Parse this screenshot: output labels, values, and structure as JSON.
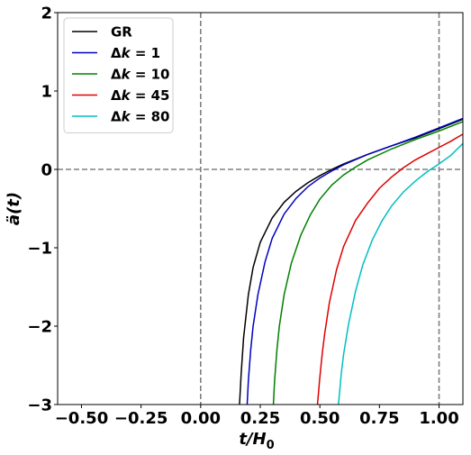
{
  "chart_data": {
    "type": "line",
    "xlabel_main": "t/H",
    "xlabel_sub": "0",
    "ylabel_main": "ä(t)",
    "xlim": [
      -0.6,
      1.1
    ],
    "ylim": [
      -3,
      2
    ],
    "xticks": [
      -0.5,
      -0.25,
      0.0,
      0.25,
      0.5,
      0.75,
      1.0
    ],
    "xtick_labels": [
      "−0.50",
      "−0.25",
      "0.00",
      "0.25",
      "0.50",
      "0.75",
      "1.00"
    ],
    "yticks": [
      -3,
      -2,
      -1,
      0,
      1,
      2
    ],
    "ytick_labels": [
      "−3",
      "−2",
      "−1",
      "0",
      "1",
      "2"
    ],
    "reference_lines": {
      "vertical": [
        0.0,
        1.0
      ],
      "horizontal": [
        0.0
      ]
    },
    "legend_position": "upper-left",
    "series": [
      {
        "name_prefix": "GR",
        "name_value": "",
        "color": "#000000",
        "x": [
          0.163,
          0.17,
          0.18,
          0.2,
          0.22,
          0.25,
          0.3,
          0.35,
          0.4,
          0.45,
          0.5,
          0.55,
          0.6,
          0.7,
          0.8,
          0.9,
          1.0,
          1.1
        ],
        "y": [
          -3.0,
          -2.6,
          -2.15,
          -1.6,
          -1.25,
          -0.93,
          -0.62,
          -0.42,
          -0.28,
          -0.17,
          -0.08,
          0.0,
          0.07,
          0.19,
          0.3,
          0.4,
          0.52,
          0.64
        ]
      },
      {
        "name_prefix": "Δk",
        "name_value": "1",
        "color": "#0000bf",
        "x": [
          0.195,
          0.2,
          0.21,
          0.22,
          0.24,
          0.27,
          0.3,
          0.35,
          0.4,
          0.45,
          0.5,
          0.55,
          0.6,
          0.7,
          0.8,
          0.9,
          1.0,
          1.1
        ],
        "y": [
          -3.0,
          -2.7,
          -2.3,
          -2.0,
          -1.6,
          -1.18,
          -0.88,
          -0.57,
          -0.37,
          -0.22,
          -0.11,
          -0.02,
          0.06,
          0.19,
          0.3,
          0.41,
          0.53,
          0.65
        ]
      },
      {
        "name_prefix": "Δk",
        "name_value": "10",
        "color": "#008000",
        "x": [
          0.305,
          0.31,
          0.32,
          0.33,
          0.35,
          0.38,
          0.42,
          0.46,
          0.5,
          0.55,
          0.6,
          0.65,
          0.7,
          0.8,
          0.9,
          1.0,
          1.1
        ],
        "y": [
          -3.0,
          -2.7,
          -2.3,
          -2.0,
          -1.6,
          -1.2,
          -0.84,
          -0.58,
          -0.38,
          -0.2,
          -0.07,
          0.03,
          0.12,
          0.26,
          0.38,
          0.49,
          0.61
        ]
      },
      {
        "name_prefix": "Δk",
        "name_value": "45",
        "color": "#e00000",
        "x": [
          0.49,
          0.5,
          0.51,
          0.52,
          0.54,
          0.57,
          0.6,
          0.65,
          0.7,
          0.75,
          0.8,
          0.85,
          0.9,
          0.95,
          1.0,
          1.05,
          1.1
        ],
        "y": [
          -3.0,
          -2.65,
          -2.35,
          -2.1,
          -1.7,
          -1.28,
          -0.98,
          -0.65,
          -0.43,
          -0.24,
          -0.1,
          0.02,
          0.12,
          0.2,
          0.28,
          0.36,
          0.45
        ]
      },
      {
        "name_prefix": "Δk",
        "name_value": "80",
        "color": "#00bfbf",
        "x": [
          0.578,
          0.59,
          0.6,
          0.62,
          0.65,
          0.68,
          0.72,
          0.76,
          0.8,
          0.85,
          0.9,
          0.95,
          1.0,
          1.05,
          1.1
        ],
        "y": [
          -3.0,
          -2.6,
          -2.35,
          -1.98,
          -1.55,
          -1.22,
          -0.9,
          -0.66,
          -0.47,
          -0.29,
          -0.15,
          -0.03,
          0.07,
          0.18,
          0.33
        ]
      }
    ]
  }
}
